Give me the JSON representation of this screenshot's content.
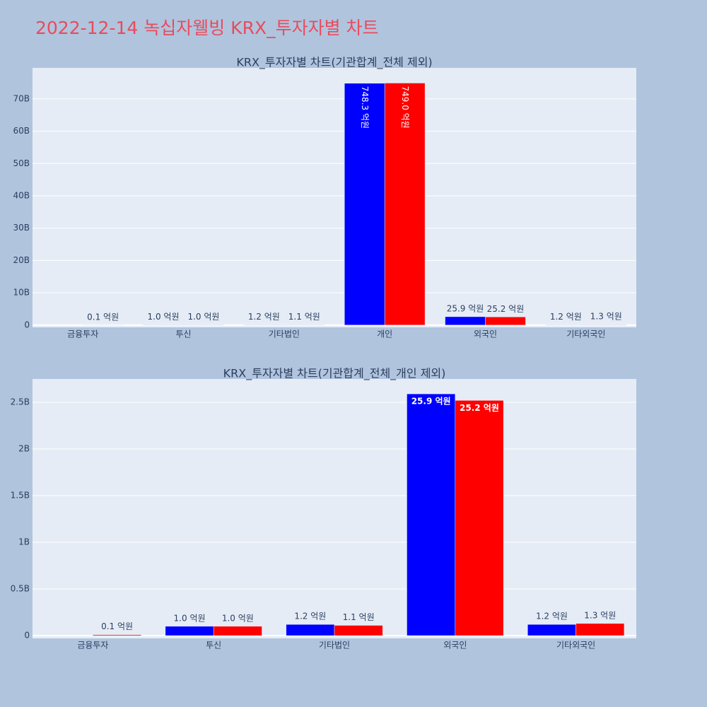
{
  "title": "2022-12-14 녹십자웰빙 KRX_투자자별 차트",
  "chart_data": [
    {
      "type": "bar",
      "title": "KRX_투자자별 차트(기관합계_전체 제외)",
      "categories": [
        "금융투자",
        "투신",
        "기타법인",
        "개인",
        "외국인",
        "기타외국인"
      ],
      "series": [
        {
          "color": "#0000ff",
          "values": [
            null,
            100000000,
            120000000,
            74830000000,
            2590000000,
            120000000
          ],
          "value_labels": [
            null,
            "1.0 억원",
            "1.2 억원",
            "748.3 억원",
            "25.9 억원",
            "1.2 억원"
          ]
        },
        {
          "color": "#ff0000",
          "values": [
            10000000,
            100000000,
            110000000,
            74900000000,
            2520000000,
            130000000
          ],
          "value_labels": [
            "0.1 억원",
            "1.0 억원",
            "1.1 억원",
            "749.0 억원",
            "25.2 억원",
            "1.3 억원"
          ]
        }
      ],
      "ylim": [
        -700000000,
        79600000000
      ],
      "yticks": [
        0,
        {
          "value": 10000000000,
          "label": "10B"
        },
        {
          "value": 20000000000,
          "label": "20B"
        },
        {
          "value": 30000000000,
          "label": "30B"
        },
        {
          "value": 40000000000,
          "label": "40B"
        },
        {
          "value": 50000000000,
          "label": "50B"
        },
        {
          "value": 60000000000,
          "label": "60B"
        },
        {
          "value": 70000000000,
          "label": "70B"
        }
      ],
      "grid": true
    },
    {
      "type": "bar",
      "title": "KRX_투자자별 차트(기관합계_전체_개인 제외)",
      "categories": [
        "금융투자",
        "투신",
        "기타법인",
        "외국인",
        "기타외국인"
      ],
      "series": [
        {
          "color": "#0000ff",
          "values": [
            null,
            100000000,
            120000000,
            2590000000,
            120000000
          ],
          "value_labels": [
            null,
            "1.0 억원",
            "1.2 억원",
            "25.9 억원",
            "1.2 억원"
          ]
        },
        {
          "color": "#ff0000",
          "values": [
            10000000,
            100000000,
            110000000,
            2520000000,
            130000000
          ],
          "value_labels": [
            "0.1 억원",
            "1.0 억원",
            "1.1 억원",
            "25.2 억원",
            "1.3 억원"
          ]
        }
      ],
      "ylim": [
        -30000000,
        2750000000
      ],
      "yticks": [
        0,
        {
          "value": 500000000,
          "label": "0.5B"
        },
        {
          "value": 1000000000,
          "label": "1B"
        },
        {
          "value": 1500000000,
          "label": "1.5B"
        },
        {
          "value": 2000000000,
          "label": "2B"
        },
        {
          "value": 2500000000,
          "label": "2.5B"
        }
      ],
      "grid": true
    }
  ]
}
